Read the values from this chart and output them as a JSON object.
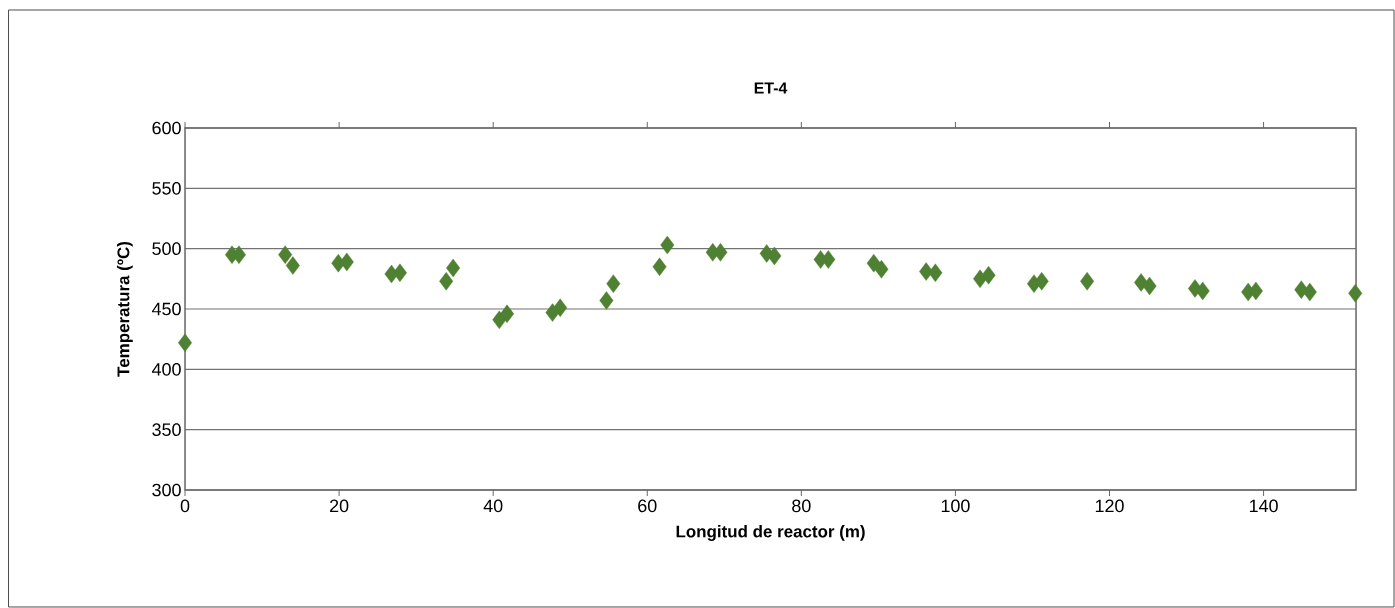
{
  "chart_data": {
    "type": "scatter",
    "title": "ET-4",
    "xlabel": "Longitud de reactor (m)",
    "ylabel": "Temperatura (ºC)",
    "xlim": [
      0,
      152
    ],
    "xticks": [
      0,
      20,
      40,
      60,
      80,
      100,
      120,
      140
    ],
    "ylim": [
      300,
      600
    ],
    "yticks": [
      300,
      350,
      400,
      450,
      500,
      550,
      600
    ],
    "grid": "y",
    "marker": "diamond",
    "series": [
      {
        "color": "#4f8133",
        "x": [
          0,
          6.1,
          7.0,
          13,
          14,
          19.9,
          21,
          26.8,
          27.9,
          33.9,
          34.8,
          40.8,
          41.8,
          47.7,
          48.7,
          54.7,
          55.6,
          61.6,
          62.6,
          68.5,
          69.5,
          75.5,
          76.5,
          82.5,
          83.5,
          89.4,
          90.4,
          96.2,
          97.4,
          103.2,
          104.3,
          110.2,
          111.2,
          117.1,
          124.1,
          125.2,
          131.1,
          132.1,
          138,
          139,
          144.9,
          146,
          151.9
        ],
        "values": [
          422,
          495,
          495,
          495,
          486,
          488,
          489,
          479,
          480,
          473,
          484,
          441,
          446,
          447,
          451,
          457,
          471,
          485,
          503,
          497,
          497,
          496,
          494,
          491,
          491,
          488,
          483,
          481,
          480,
          475,
          478,
          471,
          473,
          473,
          472,
          469,
          467,
          465,
          464,
          465,
          466,
          464,
          463
        ]
      }
    ]
  }
}
